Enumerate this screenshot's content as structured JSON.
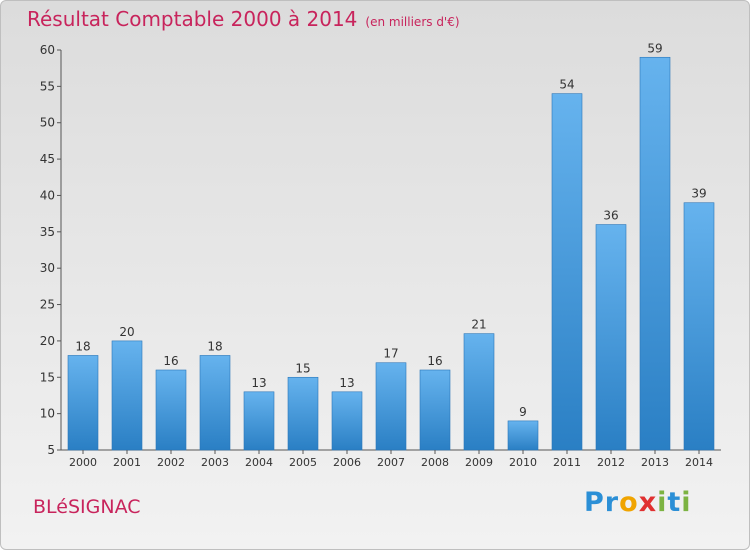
{
  "title": "Résultat Comptable 2000 à 2014",
  "subtitle": "(en milliers d'€)",
  "place": "BLéSIGNAC",
  "logo": {
    "letters": [
      "P",
      "r",
      "o",
      "x",
      "i",
      "t",
      "i"
    ],
    "colors": [
      "#2b8fd6",
      "#2b8fd6",
      "#f0a400",
      "#e03030",
      "#7cb342",
      "#2b8fd6",
      "#7cb342"
    ]
  },
  "colors": {
    "bar_top": "#66b3ee",
    "bar_bottom": "#2a7fc4",
    "accent": "#c8245c"
  },
  "chart_data": {
    "type": "bar",
    "title": "Résultat Comptable 2000 à 2014",
    "xlabel": "",
    "ylabel": "(en milliers d'€)",
    "categories": [
      "2000",
      "2001",
      "2002",
      "2003",
      "2004",
      "2005",
      "2006",
      "2007",
      "2008",
      "2009",
      "2010",
      "2011",
      "2012",
      "2013",
      "2014"
    ],
    "values": [
      18,
      20,
      16,
      18,
      13,
      15,
      13,
      17,
      16,
      21,
      9,
      54,
      36,
      59,
      39
    ],
    "ylim": [
      5,
      60
    ],
    "yticks": [
      5,
      10,
      15,
      20,
      25,
      30,
      35,
      40,
      45,
      50,
      55,
      60
    ],
    "grid": false,
    "legend": "none"
  }
}
